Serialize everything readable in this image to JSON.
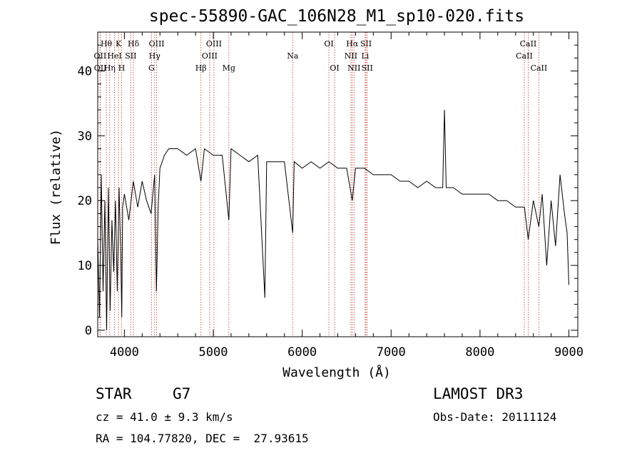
{
  "chart_data": {
    "type": "line",
    "title": "spec-55890-GAC_106N28_M1_sp10-020.fits",
    "xlabel": "Wavelength (Å)",
    "ylabel": "Flux (relative)",
    "xlim": [
      3700,
      9100
    ],
    "ylim": [
      -1,
      46
    ],
    "xticks": [
      4000,
      5000,
      6000,
      7000,
      8000,
      9000
    ],
    "yticks": [
      0,
      10,
      20,
      30,
      40
    ],
    "series": [
      {
        "name": "spectrum",
        "x": [
          3700,
          3720,
          3740,
          3760,
          3780,
          3800,
          3820,
          3840,
          3860,
          3880,
          3900,
          3920,
          3940,
          3960,
          3970,
          3980,
          4000,
          4050,
          4100,
          4150,
          4200,
          4250,
          4300,
          4340,
          4360,
          4380,
          4400,
          4450,
          4500,
          4600,
          4700,
          4800,
          4861,
          4900,
          5000,
          5100,
          5175,
          5200,
          5300,
          5400,
          5500,
          5580,
          5600,
          5700,
          5800,
          5893,
          5910,
          6000,
          6100,
          6200,
          6300,
          6400,
          6500,
          6563,
          6600,
          6700,
          6800,
          6900,
          7000,
          7100,
          7200,
          7300,
          7400,
          7500,
          7580,
          7600,
          7620,
          7700,
          7800,
          7900,
          8000,
          8100,
          8200,
          8300,
          8400,
          8500,
          8542,
          8600,
          8662,
          8700,
          8750,
          8800,
          8850,
          8900,
          8950,
          8980,
          9000
        ],
        "y": [
          14,
          2,
          24,
          6,
          20,
          0,
          22,
          3,
          17,
          9,
          20,
          6,
          22,
          11,
          2,
          19,
          21,
          17,
          23,
          19,
          23,
          20,
          18,
          24,
          6,
          19,
          25,
          27,
          28,
          28,
          27,
          28,
          23,
          28,
          27,
          27,
          17,
          28,
          27,
          26,
          27,
          5,
          26,
          26,
          26,
          15,
          26,
          25,
          26,
          25,
          26,
          25,
          25,
          20,
          25,
          25,
          24,
          24,
          24,
          23,
          23,
          22,
          23,
          22,
          22,
          34,
          22,
          22,
          21,
          21,
          21,
          21,
          20,
          20,
          19,
          19,
          14,
          20,
          16,
          21,
          10,
          20,
          13,
          24,
          18,
          15,
          7
        ]
      }
    ],
    "lines": [
      {
        "label": "Hθ",
        "wave": 3797,
        "row": 1
      },
      {
        "label": "OII",
        "wave": 3727,
        "row": 2
      },
      {
        "label": "OII",
        "wave": 3729,
        "row": 3
      },
      {
        "label": "K",
        "wave": 3934,
        "row": 1
      },
      {
        "label": "HeI",
        "wave": 3889,
        "row": 2
      },
      {
        "label": "Hη",
        "wave": 3835,
        "row": 3
      },
      {
        "label": "Hδ",
        "wave": 4102,
        "row": 1
      },
      {
        "label": "SII",
        "wave": 4072,
        "row": 2
      },
      {
        "label": "H",
        "wave": 3969,
        "row": 3
      },
      {
        "label": "OIII",
        "wave": 4363,
        "row": 1
      },
      {
        "label": "Hγ",
        "wave": 4340,
        "row": 2
      },
      {
        "label": "G",
        "wave": 4305,
        "row": 3
      },
      {
        "label": "OIII",
        "wave": 5007,
        "row": 1
      },
      {
        "label": "OIII",
        "wave": 4959,
        "row": 2
      },
      {
        "label": "Hβ",
        "wave": 4861,
        "row": 3
      },
      {
        "label": "Mg",
        "wave": 5175,
        "row": 3
      },
      {
        "label": "Na",
        "wave": 5893,
        "row": 2
      },
      {
        "label": "OI",
        "wave": 6300,
        "row": 1
      },
      {
        "label": "OI",
        "wave": 6364,
        "row": 3
      },
      {
        "label": "Hα",
        "wave": 6563,
        "row": 1
      },
      {
        "label": "NII",
        "wave": 6548,
        "row": 2
      },
      {
        "label": "NII",
        "wave": 6583,
        "row": 3
      },
      {
        "label": "SII",
        "wave": 6717,
        "row": 1
      },
      {
        "label": "Li",
        "wave": 6708,
        "row": 2
      },
      {
        "label": "SII",
        "wave": 6731,
        "row": 3
      },
      {
        "label": "CaII",
        "wave": 8542,
        "row": 1
      },
      {
        "label": "CaII",
        "wave": 8498,
        "row": 2
      },
      {
        "label": "CaII",
        "wave": 8662,
        "row": 3
      }
    ]
  },
  "info": {
    "object_class": "STAR",
    "subclass": "G7",
    "survey": "LAMOST DR3",
    "redshift": "cz = 41.0 ± 9.3 km/s",
    "obs_date": "Obs-Date: 20111124",
    "coords": "RA = 104.77820, DEC =  27.93615"
  }
}
